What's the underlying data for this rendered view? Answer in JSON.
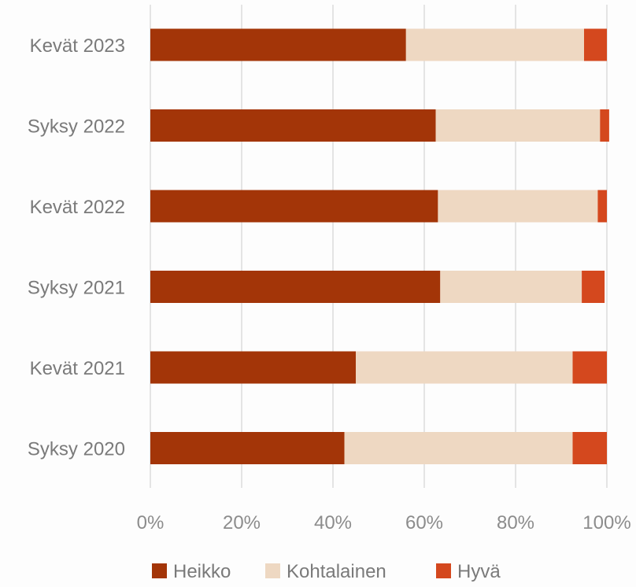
{
  "chart_data": {
    "type": "bar",
    "orientation": "horizontal",
    "stacked": "percent",
    "categories": [
      "Kevät 2023",
      "Syksy 2022",
      "Kevät 2022",
      "Syksy 2021",
      "Kevät 2021",
      "Syksy 2020"
    ],
    "series": [
      {
        "name": "Heikko",
        "color": "#a33508",
        "values": [
          56,
          62.5,
          63,
          63.5,
          45,
          42.5
        ]
      },
      {
        "name": "Kohtalainen",
        "color": "#eed8c2",
        "values": [
          39,
          36,
          35,
          31,
          47.5,
          50
        ]
      },
      {
        "name": "Hyvä",
        "color": "#d4481e",
        "values": [
          5,
          2,
          2,
          5,
          7.5,
          7.5
        ]
      }
    ],
    "xlim": [
      0,
      100
    ],
    "xticks": [
      "0%",
      "20%",
      "40%",
      "60%",
      "80%",
      "100%"
    ],
    "grid": "vertical",
    "legend": "bottom",
    "title": "",
    "xlabel": "",
    "ylabel": ""
  }
}
